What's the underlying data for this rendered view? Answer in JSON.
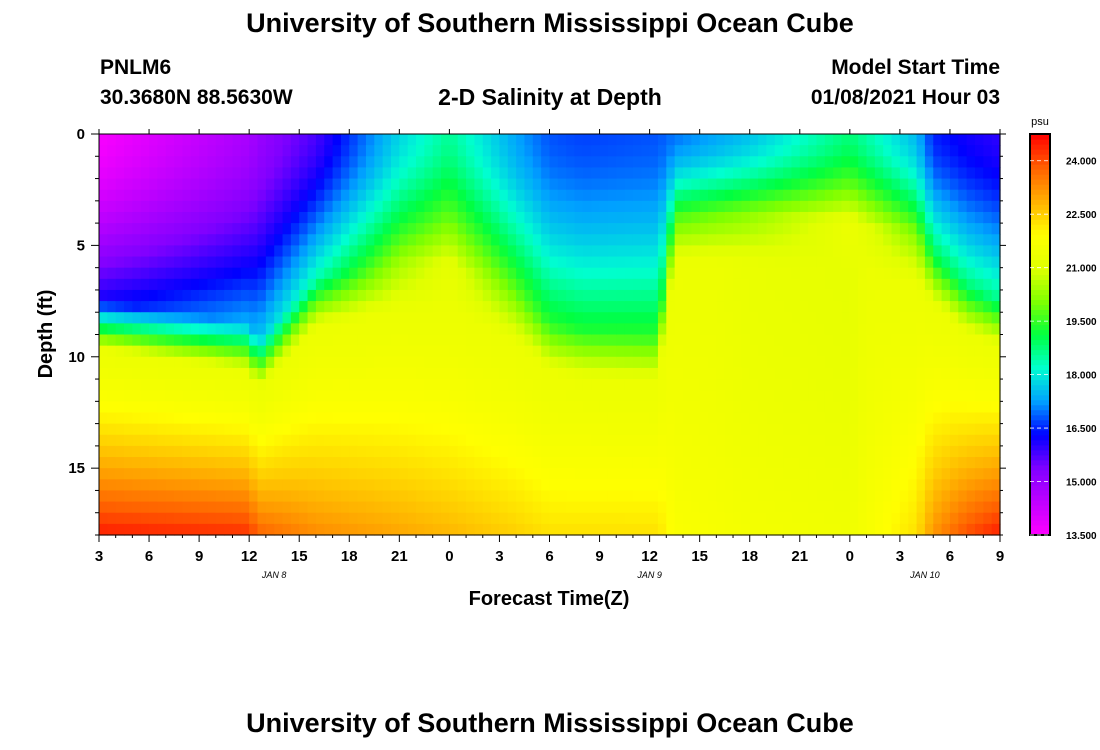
{
  "header": {
    "title": "University of Southern Mississippi Ocean Cube",
    "station": "PNLM6",
    "coordinates": "30.3680N 88.5630W",
    "subtitle": "2-D Salinity at Depth",
    "model_start_label": "Model Start Time",
    "model_start_value": "01/08/2021 Hour 03"
  },
  "footer": {
    "title": "University of Southern Mississippi Ocean Cube"
  },
  "chart_data": {
    "type": "heatmap",
    "title": "2-D Salinity at Depth",
    "xlabel": "Forecast Time(Z)",
    "ylabel": "Depth (ft)",
    "x_tick_labels": [
      "3",
      "6",
      "9",
      "12",
      "15",
      "18",
      "21",
      "0",
      "3",
      "6",
      "9",
      "12",
      "15",
      "18",
      "21",
      "0",
      "3",
      "6",
      "9"
    ],
    "date_labels": [
      {
        "label": "JAN 8",
        "tick_index": 3.5
      },
      {
        "label": "JAN 9",
        "tick_index": 11
      },
      {
        "label": "JAN 10",
        "tick_index": 16.5
      }
    ],
    "x_range_hours": [
      0,
      54
    ],
    "y_ticks": [
      0,
      5,
      10,
      15
    ],
    "ylim": [
      0,
      18
    ],
    "colorbar": {
      "unit": "psu",
      "vmin": 13.5,
      "vmax": 24.75,
      "ticks": [
        "24.000",
        "22.500",
        "21.000",
        "19.500",
        "18.000",
        "16.500",
        "15.000",
        "13.500"
      ],
      "colors": [
        "#ff00ff",
        "#c000ff",
        "#8000ff",
        "#0000ff",
        "#00a0ff",
        "#00ffd0",
        "#00ff40",
        "#80ff00",
        "#e0ff00",
        "#ffff00",
        "#ffb000",
        "#ff6000",
        "#ff0000"
      ]
    },
    "model": {
      "description": "salinity estimated at sampled forecast hours and depths",
      "time_hours": [
        0,
        9,
        9.5,
        13,
        18,
        21,
        25,
        27,
        29,
        33.5,
        34.5,
        39,
        45,
        49,
        50,
        52,
        54
      ],
      "low_salinity_layer_bottom_ft": [
        7.5,
        8.5,
        9.3,
        6.5,
        5.8,
        5.8,
        7.2,
        8.5,
        8.8,
        9.0,
        3.6,
        3.6,
        4.0,
        4.5,
        5.5,
        6.8,
        7.4
      ],
      "surface_salinity": [
        13.6,
        14.8,
        15.0,
        15.8,
        17.8,
        18.6,
        17.3,
        16.8,
        16.7,
        16.8,
        17.0,
        17.6,
        18.8,
        17.5,
        16.5,
        16.2,
        16.0
      ],
      "bottom_salinity_18ft": [
        24.5,
        24.3,
        23.8,
        23.3,
        23.0,
        22.8,
        22.5,
        22.3,
        22.3,
        22.3,
        21.8,
        21.6,
        21.5,
        22.3,
        23.2,
        24.0,
        24.5
      ]
    }
  }
}
